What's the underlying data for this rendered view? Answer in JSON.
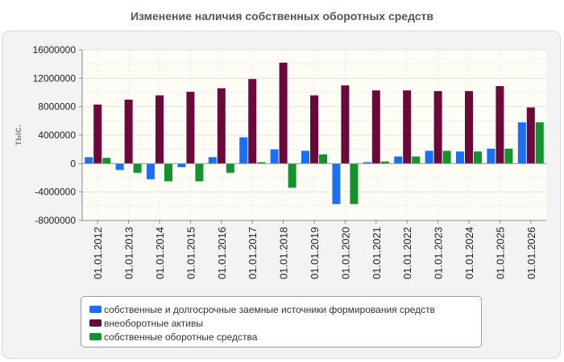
{
  "chart_data": {
    "type": "bar",
    "title": "Изменение наличия собственных оборотных средств",
    "ylabel": "тыс.",
    "xlabel": "",
    "ylim": [
      -8000000,
      16000000
    ],
    "ytick_values": [
      -8000000,
      -4000000,
      0,
      4000000,
      8000000,
      12000000,
      16000000
    ],
    "ytick_labels": [
      "-8000000",
      "-4000000",
      "0",
      "4000000",
      "8000000",
      "12000000",
      "16000000"
    ],
    "grid": true,
    "legend_position": "bottom",
    "categories": [
      "01.01.2012",
      "01.01.2013",
      "01.01.2014",
      "01.01.2015",
      "01.01.2016",
      "01.01.2017",
      "01.01.2018",
      "01.01.2019",
      "01.01.2020",
      "01.01.2021",
      "01.01.2022",
      "01.01.2023",
      "01.01.2024",
      "01.01.2025",
      "01.01.2026"
    ],
    "series": [
      {
        "name": "собственные и долгосрочные заемные источники формирования средств",
        "color": "#1a6ff5",
        "values": [
          900000,
          -900000,
          -2200000,
          -500000,
          900000,
          3700000,
          2000000,
          1800000,
          -5700000,
          200000,
          1000000,
          1800000,
          1700000,
          2100000,
          5800000
        ]
      },
      {
        "name": "внеоборотные активы",
        "color": "#6b0a3a",
        "values": [
          8300000,
          9000000,
          9600000,
          10100000,
          10600000,
          11900000,
          14200000,
          9600000,
          11000000,
          10300000,
          10300000,
          10200000,
          10200000,
          10900000,
          7900000
        ]
      },
      {
        "name": "собственные оборотные средства",
        "color": "#13922f",
        "values": [
          800000,
          -1300000,
          -2500000,
          -2500000,
          -1300000,
          200000,
          -3400000,
          1300000,
          -5700000,
          300000,
          1000000,
          1800000,
          1700000,
          2100000,
          5800000
        ]
      }
    ]
  }
}
